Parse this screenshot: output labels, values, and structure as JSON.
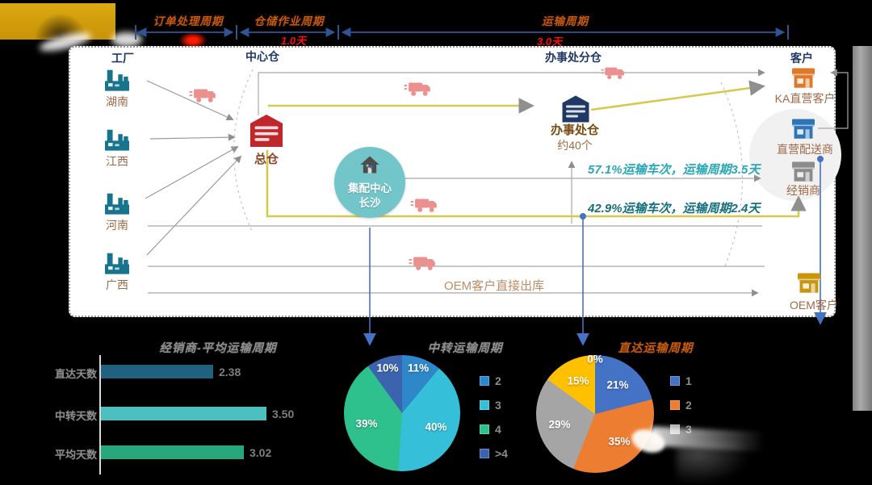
{
  "timeline": {
    "phases": [
      {
        "label": "订单处理周期",
        "duration": null
      },
      {
        "label": "仓储作业周期",
        "duration": "1.0天"
      },
      {
        "label": "运输周期",
        "duration": "3.0天"
      }
    ]
  },
  "diagram": {
    "column_headers": [
      "工厂",
      "中心仓",
      "办事处分仓",
      "客户"
    ],
    "factories": [
      {
        "name": "湖南"
      },
      {
        "name": "江西"
      },
      {
        "name": "河南"
      },
      {
        "name": "广西"
      }
    ],
    "main_warehouse": {
      "label": "总仓"
    },
    "distribution_center": {
      "name": "集配中心",
      "city": "长沙"
    },
    "office_warehouse": {
      "label": "办事处仓",
      "count": "约40个"
    },
    "customers": [
      {
        "name": "KA直营客户",
        "color": "#E0782A"
      },
      {
        "name": "直营配送商",
        "color": "#2E75B6"
      },
      {
        "name": "经销商",
        "color": "#8C8C8C"
      },
      {
        "name": "OEM客户",
        "color": "#C8960C"
      }
    ],
    "routes": {
      "transfer_note": "57.1%运输车次，运输周期3.5天",
      "direct_note": "42.9%运输车次，运输周期2.4天",
      "oem_note": "OEM客户直接出库"
    },
    "icon_colors": {
      "factory": "#17748C",
      "main_warehouse": "#C0272D",
      "office_warehouse": "#1F3864",
      "truck": "#EC8F8F",
      "distribution_center_bg": "#72C6C9"
    }
  },
  "chart_data": [
    {
      "type": "bar",
      "title": "经销商-平均运输周期",
      "orientation": "horizontal",
      "categories": [
        "直达天数",
        "中转天数",
        "平均天数"
      ],
      "values": [
        2.38,
        3.5,
        3.02
      ],
      "value_labels": [
        "2.38",
        "3.50",
        "3.02"
      ],
      "colors": [
        "#20617F",
        "#4CC0C1",
        "#27A87C"
      ],
      "xlim": [
        0,
        3.6
      ],
      "grid": false
    },
    {
      "type": "pie",
      "title": "中转运输周期",
      "slices": [
        {
          "day": "2",
          "pct": 11,
          "color": "#2E87C8"
        },
        {
          "day": "3",
          "pct": 40,
          "color": "#35BFD8"
        },
        {
          "day": "4",
          "pct": 39,
          "color": "#2EC08D"
        },
        {
          "day": ">4",
          "pct": 10,
          "color": "#3C64AE"
        }
      ],
      "legend": [
        {
          "label": "2",
          "color": "#2E87C8"
        },
        {
          "label": "3",
          "color": "#35BFD8"
        },
        {
          "label": "4",
          "color": "#2EC08D"
        },
        {
          "label": ">4",
          "color": "#3C64AE"
        }
      ],
      "legend_position": "right"
    },
    {
      "type": "pie",
      "title": "直达运输周期",
      "slices": [
        {
          "day": "",
          "pct": 0,
          "color": "#4472C4"
        },
        {
          "day": "1",
          "pct": 21,
          "color": "#4472C4"
        },
        {
          "day": "2",
          "pct": 35,
          "color": "#ED7D31"
        },
        {
          "day": "3",
          "pct": 29,
          "color": "#A5A5A5"
        },
        {
          "day": "4",
          "pct": 15,
          "color": "#FFC000"
        }
      ],
      "legend": [
        {
          "label": "1",
          "color": "#4472C4"
        },
        {
          "label": "2",
          "color": "#ED7D31"
        },
        {
          "label": "3",
          "color": "#A5A5A5"
        }
      ],
      "legend_position": "right"
    }
  ]
}
